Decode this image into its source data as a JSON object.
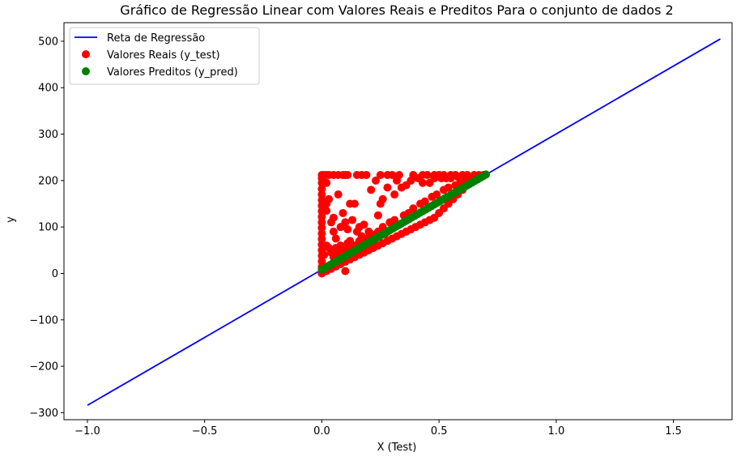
{
  "chart_data": {
    "type": "scatter",
    "title": "Gráfico de Regressão Linear com Valores Reais e Preditos Para o conjunto de dados 2",
    "xlabel": "X (Test)",
    "ylabel": "y",
    "xlim": [
      -1.1,
      1.75
    ],
    "ylim": [
      -315,
      540
    ],
    "xticks": [
      -1.0,
      -0.5,
      0.0,
      0.5,
      1.0,
      1.5
    ],
    "xtick_labels": [
      "−1.0",
      "−0.5",
      "0.0",
      "0.5",
      "1.0",
      "1.5"
    ],
    "yticks": [
      500,
      400,
      300,
      200,
      100,
      0,
      -100,
      -200,
      -300
    ],
    "ytick_labels": [
      "500",
      "400",
      "300",
      "200",
      "100",
      "0",
      "−100",
      "−200",
      "−300"
    ],
    "grid": false,
    "legend_position": "top-left",
    "legend": [
      {
        "label": "Reta de Regressão",
        "kind": "line",
        "color": "#0000ff"
      },
      {
        "label": "Valores Reais (y_test)",
        "kind": "marker",
        "color": "#ff0000"
      },
      {
        "label": "Valores Preditos (y_pred)",
        "kind": "marker",
        "color": "#008000"
      }
    ],
    "series": [
      {
        "name": "Reta de Regressão",
        "kind": "line",
        "color": "#0000ff",
        "x": [
          -1.0,
          1.7
        ],
        "y": [
          -284,
          505
        ]
      },
      {
        "name": "Valores Reais (y_test)",
        "kind": "scatter",
        "color": "#ff0000",
        "points": [
          [
            0.0,
            212
          ],
          [
            0.01,
            212
          ],
          [
            0.02,
            212
          ],
          [
            0.03,
            212
          ],
          [
            0.05,
            212
          ],
          [
            0.07,
            212
          ],
          [
            0.09,
            212
          ],
          [
            0.1,
            212
          ],
          [
            0.11,
            212
          ],
          [
            0.15,
            212
          ],
          [
            0.17,
            212
          ],
          [
            0.19,
            212
          ],
          [
            0.25,
            212
          ],
          [
            0.28,
            212
          ],
          [
            0.3,
            212
          ],
          [
            0.33,
            212
          ],
          [
            0.39,
            212
          ],
          [
            0.43,
            212
          ],
          [
            0.45,
            212
          ],
          [
            0.48,
            212
          ],
          [
            0.5,
            212
          ],
          [
            0.52,
            212
          ],
          [
            0.55,
            212
          ],
          [
            0.57,
            212
          ],
          [
            0.6,
            212
          ],
          [
            0.62,
            212
          ],
          [
            0.65,
            212
          ],
          [
            0.67,
            212
          ],
          [
            0.69,
            212
          ],
          [
            0.0,
            205
          ],
          [
            0.0,
            195
          ],
          [
            0.0,
            182
          ],
          [
            0.0,
            170
          ],
          [
            0.0,
            158
          ],
          [
            0.0,
            146
          ],
          [
            0.0,
            134
          ],
          [
            0.0,
            122
          ],
          [
            0.0,
            110
          ],
          [
            0.0,
            98
          ],
          [
            0.0,
            86
          ],
          [
            0.0,
            74
          ],
          [
            0.0,
            62
          ],
          [
            0.0,
            50
          ],
          [
            0.0,
            38
          ],
          [
            0.0,
            26
          ],
          [
            0.0,
            14
          ],
          [
            0.0,
            4
          ],
          [
            0.02,
            195
          ],
          [
            0.02,
            150
          ],
          [
            0.02,
            135
          ],
          [
            0.03,
            160
          ],
          [
            0.04,
            110
          ],
          [
            0.05,
            120
          ],
          [
            0.05,
            90
          ],
          [
            0.06,
            75
          ],
          [
            0.07,
            170
          ],
          [
            0.08,
            100
          ],
          [
            0.09,
            130
          ],
          [
            0.1,
            110
          ],
          [
            0.11,
            95
          ],
          [
            0.12,
            150
          ],
          [
            0.13,
            115
          ],
          [
            0.14,
            150
          ],
          [
            0.15,
            90
          ],
          [
            0.16,
            100
          ],
          [
            0.18,
            105
          ],
          [
            0.2,
            90
          ],
          [
            0.21,
            180
          ],
          [
            0.23,
            200
          ],
          [
            0.24,
            125
          ],
          [
            0.25,
            150
          ],
          [
            0.26,
            160
          ],
          [
            0.28,
            185
          ],
          [
            0.31,
            170
          ],
          [
            0.32,
            200
          ],
          [
            0.34,
            185
          ],
          [
            0.36,
            190
          ],
          [
            0.38,
            200
          ],
          [
            0.41,
            205
          ],
          [
            0.43,
            195
          ],
          [
            0.46,
            195
          ],
          [
            0.48,
            205
          ],
          [
            0.51,
            205
          ],
          [
            0.53,
            205
          ],
          [
            0.55,
            205
          ],
          [
            0.58,
            208
          ],
          [
            0.61,
            208
          ],
          [
            0.63,
            208
          ],
          [
            0.66,
            210
          ],
          [
            0.01,
            40
          ],
          [
            0.02,
            60
          ],
          [
            0.03,
            55
          ],
          [
            0.04,
            45
          ],
          [
            0.05,
            35
          ],
          [
            0.06,
            55
          ],
          [
            0.07,
            45
          ],
          [
            0.08,
            60
          ],
          [
            0.09,
            30
          ],
          [
            0.1,
            50
          ],
          [
            0.1,
            5
          ],
          [
            0.11,
            65
          ],
          [
            0.12,
            70
          ],
          [
            0.13,
            55
          ],
          [
            0.14,
            60
          ],
          [
            0.16,
            70
          ],
          [
            0.17,
            80
          ],
          [
            0.19,
            75
          ],
          [
            0.21,
            85
          ],
          [
            0.22,
            70
          ],
          [
            0.24,
            90
          ],
          [
            0.26,
            100
          ],
          [
            0.27,
            85
          ],
          [
            0.29,
            110
          ],
          [
            0.31,
            115
          ],
          [
            0.33,
            105
          ],
          [
            0.35,
            125
          ],
          [
            0.37,
            130
          ],
          [
            0.39,
            140
          ],
          [
            0.42,
            150
          ],
          [
            0.44,
            155
          ],
          [
            0.47,
            165
          ],
          [
            0.49,
            170
          ],
          [
            0.52,
            180
          ],
          [
            0.54,
            185
          ],
          [
            0.57,
            190
          ],
          [
            0.59,
            195
          ],
          [
            0.62,
            200
          ],
          [
            0.64,
            205
          ],
          [
            0.67,
            208
          ],
          [
            0.0,
            0
          ],
          [
            0.02,
            5
          ],
          [
            0.04,
            10
          ],
          [
            0.06,
            15
          ],
          [
            0.08,
            20
          ],
          [
            0.1,
            25
          ],
          [
            0.12,
            30
          ],
          [
            0.14,
            35
          ],
          [
            0.16,
            40
          ],
          [
            0.18,
            45
          ],
          [
            0.2,
            50
          ],
          [
            0.22,
            55
          ],
          [
            0.24,
            60
          ],
          [
            0.26,
            65
          ],
          [
            0.28,
            70
          ],
          [
            0.3,
            75
          ],
          [
            0.32,
            80
          ],
          [
            0.34,
            85
          ],
          [
            0.36,
            90
          ],
          [
            0.38,
            95
          ],
          [
            0.4,
            100
          ],
          [
            0.42,
            105
          ],
          [
            0.44,
            110
          ],
          [
            0.46,
            115
          ],
          [
            0.48,
            120
          ],
          [
            0.5,
            130
          ],
          [
            0.52,
            140
          ],
          [
            0.54,
            150
          ],
          [
            0.56,
            160
          ],
          [
            0.58,
            170
          ],
          [
            0.6,
            180
          ],
          [
            0.62,
            190
          ],
          [
            0.64,
            198
          ],
          [
            0.66,
            205
          ],
          [
            0.68,
            210
          ]
        ]
      },
      {
        "name": "Valores Preditos (y_pred)",
        "kind": "scatter",
        "color": "#008000",
        "x_range": [
          0.0,
          0.7
        ],
        "y_range": [
          8,
          213
        ]
      }
    ]
  }
}
